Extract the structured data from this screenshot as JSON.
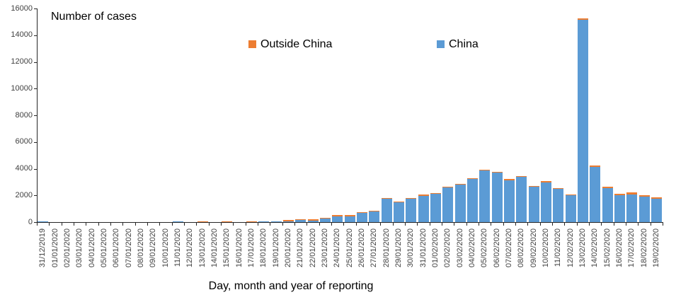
{
  "chart_data": {
    "type": "bar",
    "stacked": true,
    "title": "Number of cases",
    "xlabel": "Day, month and year of reporting",
    "ylabel": "",
    "ylim": [
      0,
      16000
    ],
    "ytick_step": 2000,
    "grid": false,
    "legend_position": "top-center",
    "background_color": "#FFFFFF",
    "axis_color": "#262626",
    "tick_label_color": "#3F3F3F",
    "categories": [
      "31/12/2019",
      "01/01/2020",
      "02/01/2020",
      "03/01/2020",
      "04/01/2020",
      "05/01/2020",
      "06/01/2020",
      "07/01/2020",
      "08/01/2020",
      "09/01/2020",
      "10/01/2020",
      "11/01/2020",
      "12/01/2020",
      "13/01/2020",
      "14/01/2020",
      "15/01/2020",
      "16/01/2020",
      "17/01/2020",
      "18/01/2020",
      "19/01/2020",
      "20/01/2020",
      "21/01/2020",
      "22/01/2020",
      "23/01/2020",
      "24/01/2020",
      "25/01/2020",
      "26/01/2020",
      "27/01/2020",
      "28/01/2020",
      "29/01/2020",
      "30/01/2020",
      "31/01/2020",
      "01/02/2020",
      "02/02/2020",
      "03/02/2020",
      "04/02/2020",
      "05/02/2020",
      "06/02/2020",
      "07/02/2020",
      "08/02/2020",
      "09/02/2020",
      "10/02/2020",
      "11/02/2020",
      "12/02/2020",
      "13/02/2020",
      "14/02/2020",
      "15/02/2020",
      "16/02/2020",
      "17/02/2020",
      "18/02/2020",
      "19/02/2020"
    ],
    "series": [
      {
        "name": "China",
        "color": "#5B9BD5",
        "values": [
          27,
          0,
          0,
          17,
          0,
          15,
          0,
          0,
          0,
          0,
          0,
          40,
          0,
          0,
          0,
          0,
          4,
          17,
          59,
          77,
          77,
          149,
          131,
          259,
          444,
          441,
          665,
          787,
          1753,
          1466,
          1740,
          1980,
          2095,
          2590,
          2812,
          3237,
          3872,
          3697,
          3151,
          3387,
          2652,
          2974,
          2467,
          2015,
          15141,
          4156,
          2538,
          2007,
          2051,
          1891,
          1752
        ]
      },
      {
        "name": "Outside China",
        "color": "#ED7D31",
        "values": [
          0,
          0,
          0,
          0,
          0,
          0,
          0,
          0,
          0,
          0,
          0,
          0,
          0,
          1,
          0,
          1,
          0,
          1,
          0,
          0,
          2,
          4,
          2,
          3,
          5,
          12,
          10,
          8,
          14,
          6,
          16,
          26,
          27,
          25,
          17,
          25,
          30,
          31,
          54,
          36,
          21,
          44,
          54,
          45,
          98,
          60,
          103,
          121,
          160,
          113,
          125
        ]
      }
    ]
  }
}
